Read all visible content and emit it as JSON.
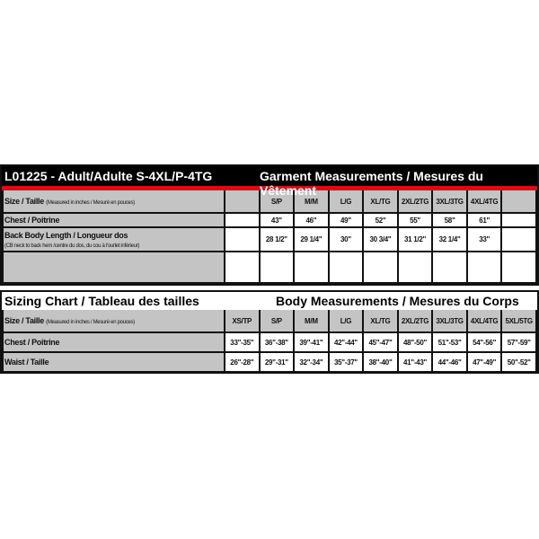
{
  "garment": {
    "title": "L01225 - Adult/Adulte S-4XL/P-4TG",
    "heading": "Garment Measurements / Mesures du Vêtement",
    "size_label": "Size / Taille",
    "size_note": "(Measured in inches / Mesuré en pouces)",
    "sizes": [
      "",
      "S/P",
      "M/M",
      "L/G",
      "XL/TG",
      "2XL/2TG",
      "3XL/3TG",
      "4XL/4TG",
      ""
    ],
    "rows": [
      {
        "label": "Chest / Poitrine",
        "note": "",
        "values": [
          "",
          "43\"",
          "46\"",
          "49\"",
          "52\"",
          "55\"",
          "58\"",
          "61\"",
          ""
        ]
      },
      {
        "label": "Back Body Length / Longueur dos",
        "note": "(CB neck to back hem /centre du dos, du cou à l'ourlet inférieur)",
        "values": [
          "",
          "28 1/2\"",
          "29 1/4\"",
          "30\"",
          "30 3/4\"",
          "31 1/2\"",
          "32 1/4\"",
          "33\"",
          ""
        ]
      },
      {
        "label": "",
        "note": "",
        "values": [
          "",
          "",
          "",
          "",
          "",
          "",
          "",
          "",
          ""
        ]
      }
    ]
  },
  "body": {
    "title": "Sizing Chart / Tableau des tailles",
    "heading": "Body Measurements / Mesures du Corps",
    "size_label": "Size / Taille",
    "size_note": "(Measured in inches / Mesuré en pouces)",
    "sizes": [
      "XS/TP",
      "S/P",
      "M/M",
      "L/G",
      "XL/TG",
      "2XL/2TG",
      "3XL/3TG",
      "4XL/4TG",
      "5XL/5TG"
    ],
    "rows": [
      {
        "label": "Chest / Poitrine",
        "values": [
          "33\"-35\"",
          "36\"-38\"",
          "39\"-41\"",
          "42\"-44\"",
          "45\"-47\"",
          "48\"-50\"",
          "51\"-53\"",
          "54\"-56\"",
          "57\"-59\""
        ]
      },
      {
        "label": "Waist / Taille",
        "values": [
          "26\"-28\"",
          "29\"-31\"",
          "32\"-34\"",
          "35\"-37\"",
          "38\"-40\"",
          "41\"-43\"",
          "44\"-46\"",
          "47\"-49\"",
          "50\"-52\""
        ]
      }
    ]
  },
  "colors": {
    "accent": "#e30613",
    "header_bg": "#000000",
    "label_bg": "#c4c4c4"
  }
}
